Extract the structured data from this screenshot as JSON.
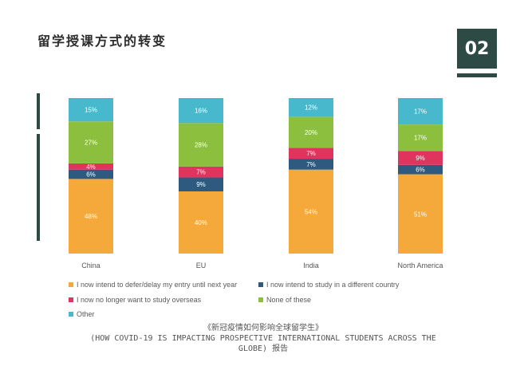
{
  "slide": {
    "title": "留学授课方式的转变",
    "page_number": "02",
    "caption_line1": "《新冠疫情如何影响全球留学生》",
    "caption_line2": "(HOW COVID-19 IS IMPACTING PROSPECTIVE INTERNATIONAL STUDENTS ACROSS THE",
    "caption_line3": "GLOBE) 报告"
  },
  "colors": {
    "accent": "#2d4a45",
    "defer": "#f5a93b",
    "different_country": "#2d5a7e",
    "no_longer": "#e0345e",
    "none": "#8dbf3f",
    "other": "#48b8cc"
  },
  "chart_data": {
    "type": "bar",
    "stacked": true,
    "orientation": "vertical",
    "categories": [
      "China",
      "EU",
      "India",
      "North America"
    ],
    "series": [
      {
        "name": "I now intend to defer/delay my entry until next year",
        "color": "#f5a93b",
        "values": [
          48,
          40,
          54,
          51
        ]
      },
      {
        "name": "I now intend to study in a different country",
        "color": "#2d5a7e",
        "values": [
          6,
          9,
          7,
          6
        ]
      },
      {
        "name": "I now no longer want to study overseas",
        "color": "#e0345e",
        "values": [
          4,
          7,
          7,
          9
        ]
      },
      {
        "name": "None of these",
        "color": "#8dbf3f",
        "values": [
          27,
          28,
          20,
          17
        ]
      },
      {
        "name": "Other",
        "color": "#48b8cc",
        "values": [
          15,
          16,
          12,
          17
        ]
      }
    ],
    "data_labels": true,
    "ylim": [
      0,
      100
    ],
    "legend_position": "bottom",
    "grid": false
  }
}
